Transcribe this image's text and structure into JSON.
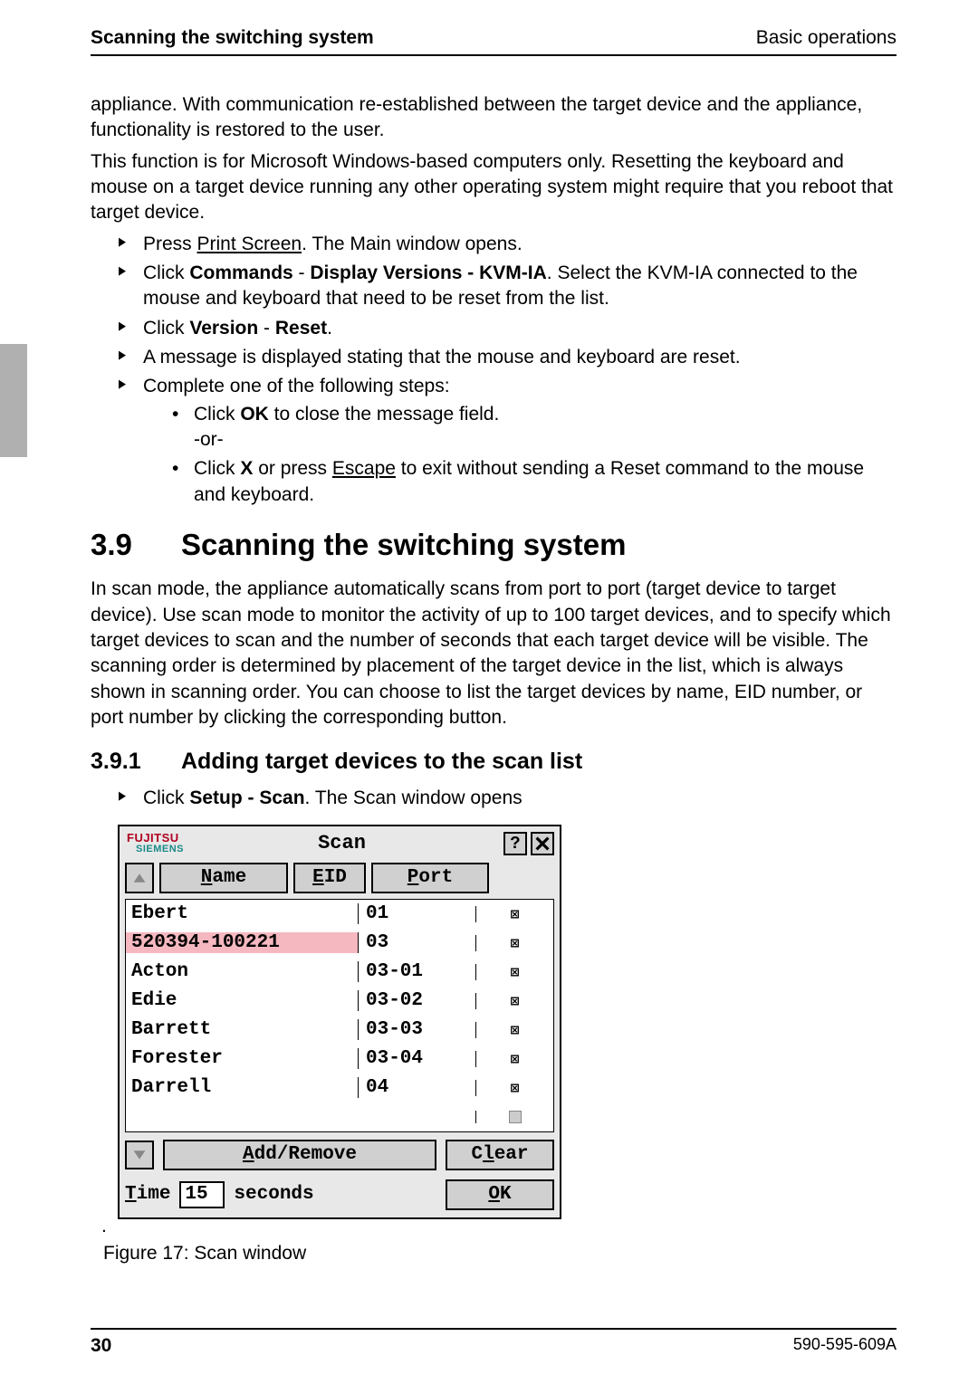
{
  "header": {
    "left": "Scanning the switching system",
    "right": "Basic operations"
  },
  "para1": "appliance. With communication re-established between the target device and the appliance, functionality is restored to the user.",
  "para2": "This function is for Microsoft Windows-based computers only. Resetting the keyboard and mouse on a target device running any other operating system might require that you reboot that target device.",
  "steps": {
    "s1_a": "Press ",
    "s1_b": "Print Screen",
    "s1_c": ". The Main window opens.",
    "s2_a": "Click ",
    "s2_b": "Commands",
    "s2_c": " - ",
    "s2_d": "Display Versions - KVM-IA",
    "s2_e": ". Select the KVM-IA connected to the mouse and keyboard that need to be reset from the list.",
    "s3_a": "Click ",
    "s3_b": "Version",
    "s3_c": " - ",
    "s3_d": "Reset",
    "s3_e": ".",
    "s4": "A message is displayed stating that the mouse and keyboard are reset.",
    "s5": "Complete one of the following steps:",
    "s5a_a": "Click ",
    "s5a_b": "OK",
    "s5a_c": " to close the message field.",
    "s5a_or": "-or-",
    "s5b_a": "Click ",
    "s5b_b": "X",
    "s5b_c": " or press ",
    "s5b_d": "Escape",
    "s5b_e": " to exit without sending a Reset command to the mouse and keyboard."
  },
  "section": {
    "num": "3.9",
    "title": "Scanning the switching system"
  },
  "section_para": "In scan mode, the appliance automatically scans from port to port (target device to target device). Use scan mode to monitor the activity of up to 100 target devices, and to specify which target devices to scan and the number of seconds that each target device will be visible. The scanning order is determined by placement of the target device in the list, which is always shown in scanning order. You can choose to list the target devices by name, EID number, or port number by clicking the corresponding button.",
  "subsection": {
    "num": "3.9.1",
    "title": "Adding target devices to the scan list"
  },
  "sub_step_a": "Click ",
  "sub_step_b": "Setup - Scan",
  "sub_step_c": ". The Scan window opens",
  "scan": {
    "title": "Scan",
    "brand_top": "FUJITSU",
    "brand_bot": "SIEMENS",
    "help_label": "?",
    "close_label": "X",
    "columns": {
      "name_letter": "N",
      "name_rest": "ame",
      "eid_letter": "E",
      "eid_rest": "ID",
      "port_letter": "P",
      "port_rest": "ort"
    },
    "rows": [
      {
        "name": "Ebert",
        "port": "01",
        "checked": true,
        "highlight": false
      },
      {
        "name": "520394-100221",
        "port": "03",
        "checked": true,
        "highlight": true
      },
      {
        "name": "Acton",
        "port": "03-01",
        "checked": true,
        "highlight": false
      },
      {
        "name": "Edie",
        "port": "03-02",
        "checked": true,
        "highlight": false
      },
      {
        "name": "Barrett",
        "port": "03-03",
        "checked": true,
        "highlight": false
      },
      {
        "name": "Forester",
        "port": "03-04",
        "checked": true,
        "highlight": false
      },
      {
        "name": "Darrell",
        "port": "04",
        "checked": true,
        "highlight": false
      },
      {
        "name": "",
        "port": "",
        "checked": false,
        "highlight": false
      }
    ],
    "buttons": {
      "addremove_letter": "A",
      "addremove_rest": "dd/Remove",
      "clear_pre": "C",
      "clear_letter": "l",
      "clear_rest": "ear",
      "ok_letter": "O",
      "ok_rest": "K"
    },
    "time": {
      "label_letter": "T",
      "label_rest": "ime",
      "value": "15",
      "unit": "seconds"
    }
  },
  "figure_caption": "Figure 17: Scan window",
  "footer": {
    "page": "30",
    "doc": "590-595-609A"
  }
}
